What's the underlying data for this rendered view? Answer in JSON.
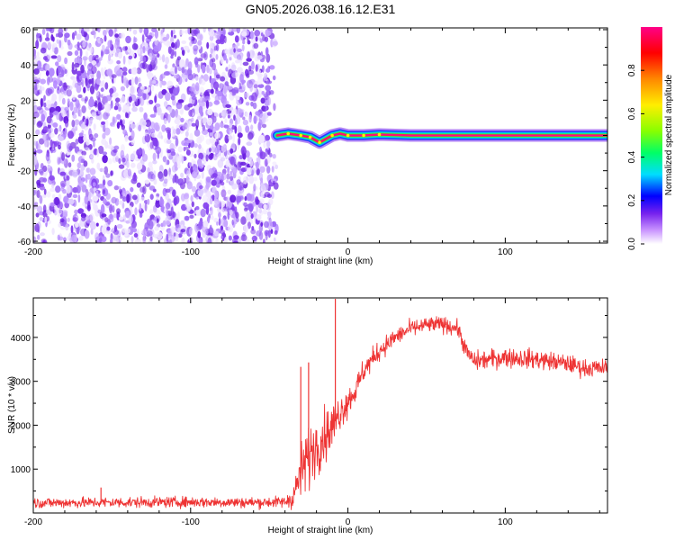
{
  "figure_title": "GN05.2026.038.16.12.E31",
  "chart_data": [
    {
      "type": "heatmap",
      "title": "GN05.2026.038.16.12.E31",
      "xlabel": "Height of straight line (km)",
      "ylabel": "Frequency (Hz)",
      "xlim": [
        -200,
        165
      ],
      "ylim": [
        -61,
        61
      ],
      "x_ticks": [
        -200,
        -100,
        0,
        100
      ],
      "y_ticks": [
        -60,
        -40,
        -20,
        0,
        20,
        40,
        60
      ],
      "colorbar": {
        "label": "Normalized spectral amplitude",
        "range": [
          0.0,
          1.0
        ],
        "ticks": [
          0.0,
          0.2,
          0.4,
          0.6,
          0.8
        ],
        "colors": [
          "#ffffff",
          "#cc99ff",
          "#7722ee",
          "#0000ff",
          "#00ddff",
          "#00ff66",
          "#88ff00",
          "#ffee00",
          "#ff8800",
          "#ff0000",
          "#ff0088"
        ]
      },
      "regions": [
        {
          "name": "broadband noise",
          "x_range": [
            -200,
            -45
          ],
          "freq_range": [
            -61,
            61
          ],
          "amplitude_range": [
            0.0,
            0.3
          ]
        },
        {
          "name": "carrier line",
          "x_range": [
            -45,
            165
          ],
          "freq": 0,
          "amplitude": 1.0
        }
      ],
      "carrier_trace": [
        {
          "x": -45,
          "freq": 0
        },
        {
          "x": -38,
          "freq": 1
        },
        {
          "x": -30,
          "freq": 0
        },
        {
          "x": -24,
          "freq": -1
        },
        {
          "x": -18,
          "freq": -4
        },
        {
          "x": -14,
          "freq": -2
        },
        {
          "x": -10,
          "freq": 0
        },
        {
          "x": -5,
          "freq": 1
        },
        {
          "x": 0,
          "freq": 0
        },
        {
          "x": 10,
          "freq": 0
        },
        {
          "x": 20,
          "freq": 0.5
        },
        {
          "x": 40,
          "freq": 0
        },
        {
          "x": 165,
          "freq": 0
        }
      ]
    },
    {
      "type": "line",
      "xlabel": "Height of straight line (km)",
      "ylabel": "SNR (10 * v/v)",
      "xlim": [
        -200,
        165
      ],
      "ylim": [
        0,
        4900
      ],
      "x_ticks": [
        -200,
        -100,
        0,
        100
      ],
      "y_ticks": [
        1000,
        2000,
        3000,
        4000
      ],
      "series": [
        {
          "name": "SNR",
          "color": "#ee3333",
          "envelope_x": [
            -200,
            -150,
            -100,
            -60,
            -40,
            -35,
            -30,
            -25,
            -20,
            -15,
            -10,
            -5,
            0,
            5,
            10,
            20,
            30,
            40,
            50,
            60,
            70,
            75,
            80,
            100,
            120,
            140,
            150,
            165
          ],
          "envelope_y": [
            230,
            240,
            250,
            240,
            250,
            350,
            900,
            1300,
            1550,
            1750,
            1950,
            2300,
            2550,
            2800,
            3250,
            3700,
            4000,
            4200,
            4280,
            4300,
            4200,
            3700,
            3450,
            3550,
            3500,
            3400,
            3300,
            3300
          ],
          "noise_amplitude": [
            120,
            120,
            120,
            120,
            130,
            250,
            650,
            700,
            650,
            600,
            550,
            400,
            350,
            300,
            280,
            230,
            200,
            190,
            180,
            180,
            180,
            200,
            220,
            220,
            220,
            200,
            200,
            200
          ],
          "spikes": [
            {
              "x": -8,
              "y": 4880
            },
            {
              "x": -25,
              "y": 3430
            },
            {
              "x": -30,
              "y": 3330
            },
            {
              "x": -157,
              "y": 580
            }
          ]
        }
      ]
    }
  ]
}
